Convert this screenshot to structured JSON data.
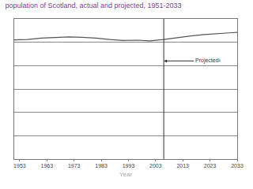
{
  "chart_data": {
    "type": "line",
    "title": "population of Scotland, actual and projected, 1951-2033",
    "x_label": "Year",
    "x": [
      1951,
      1956,
      1961,
      1966,
      1971,
      1976,
      1981,
      1986,
      1991,
      1996,
      2001,
      2006,
      2011,
      2016,
      2021,
      2026,
      2031,
      2033
    ],
    "values": [
      5.1,
      5.12,
      5.18,
      5.2,
      5.23,
      5.21,
      5.18,
      5.12,
      5.08,
      5.09,
      5.06,
      5.12,
      5.2,
      5.27,
      5.33,
      5.38,
      5.41,
      5.42
    ],
    "color": "#555555",
    "xlim": [
      1951,
      2033
    ],
    "xticks": [
      1953,
      1963,
      1973,
      1983,
      1993,
      2003,
      2013,
      2023,
      2033
    ],
    "ylim": [
      0,
      6
    ],
    "yticks": [
      0,
      1,
      2,
      3,
      4,
      5,
      6
    ],
    "grid": true,
    "tick_labels": "x",
    "projection_start": 2006,
    "annotation": "Projected¹"
  }
}
